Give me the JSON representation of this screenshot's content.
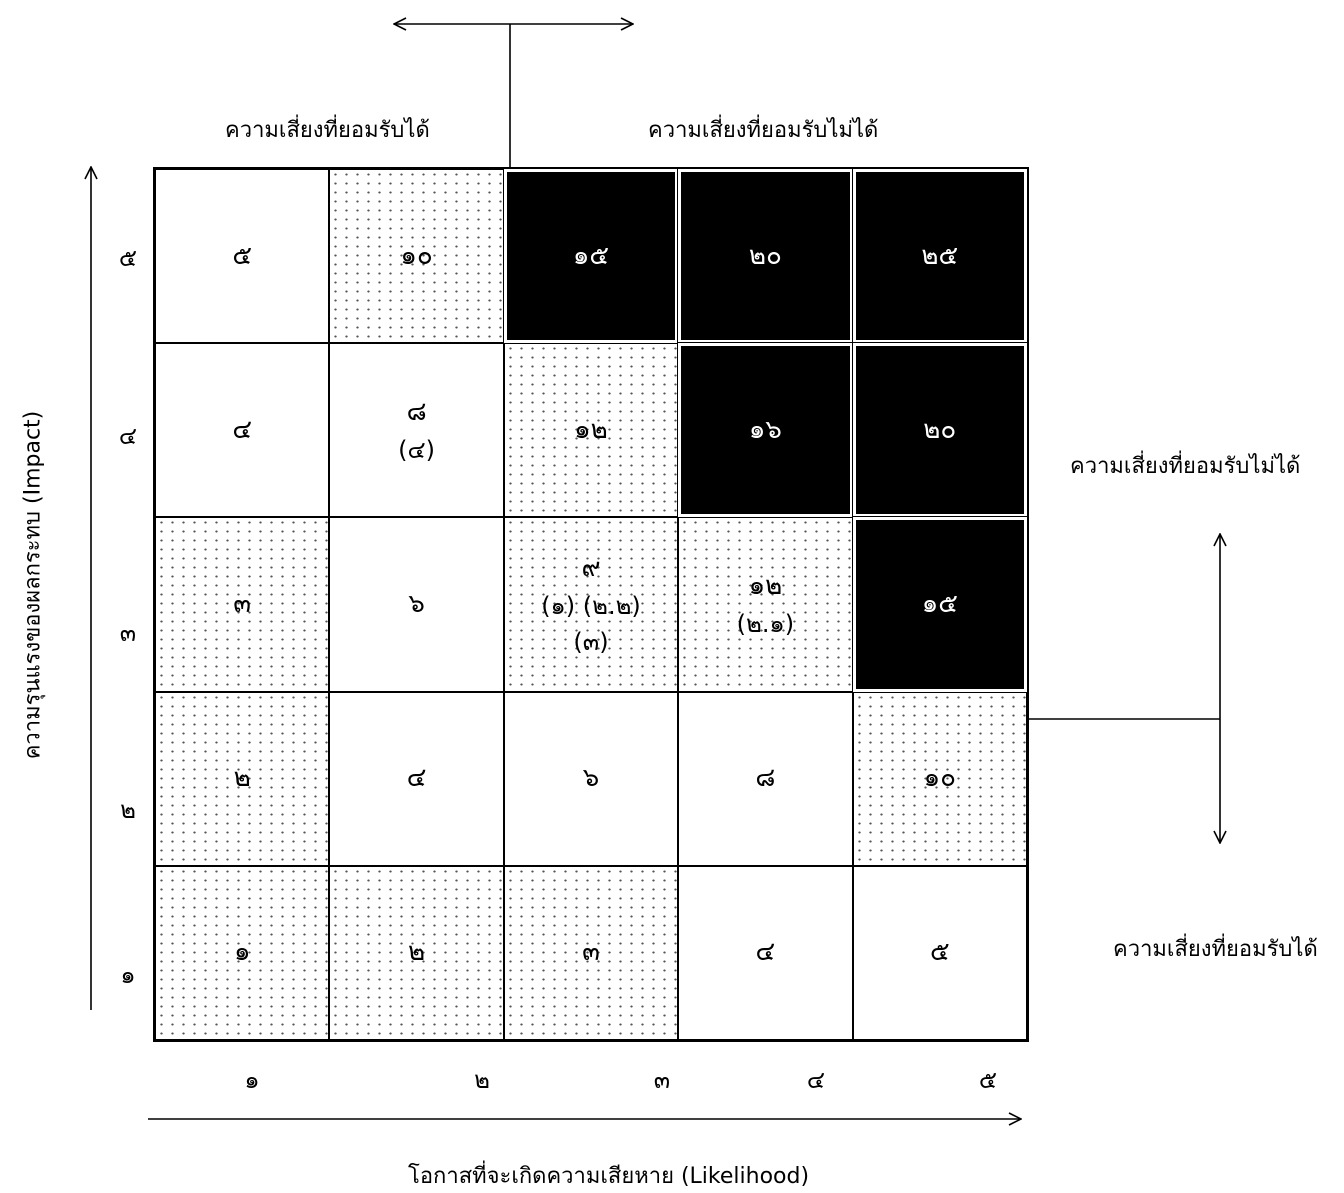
{
  "top_labels": {
    "acceptable": "ความเสี่ยงที่ยอมรับได้",
    "unacceptable": "ความเสี่ยงที่ยอมรับไม่ได้"
  },
  "right_labels": {
    "unacceptable": "ความเสี่ยงที่ยอมรับไม่ได้",
    "acceptable": "ความเสี่ยงที่ยอมรับได้"
  },
  "y_axis_label": "ความรุนแรงของผลกระทบ (Impact)",
  "x_axis_label": "โอกาสที่จะเกิดความเสียหาย (Likelihood)",
  "row_labels": [
    "๕",
    "๔",
    "๓",
    "๒",
    "๑"
  ],
  "col_labels": [
    "๑",
    "๒",
    "๓",
    "๔",
    "๕"
  ],
  "matrix": [
    [
      {
        "v": "๕",
        "s": "w"
      },
      {
        "v": "๑๐",
        "s": "d"
      },
      {
        "v": "๑๕",
        "s": "k"
      },
      {
        "v": "๒๐",
        "s": "k"
      },
      {
        "v": "๒๕",
        "s": "k"
      }
    ],
    [
      {
        "v": "๔",
        "s": "w"
      },
      {
        "v": "๘",
        "sub": "(๔)",
        "s": "w"
      },
      {
        "v": "๑๒",
        "s": "d"
      },
      {
        "v": "๑๖",
        "s": "k"
      },
      {
        "v": "๒๐",
        "s": "k"
      }
    ],
    [
      {
        "v": "๓",
        "s": "d"
      },
      {
        "v": "๖",
        "s": "w"
      },
      {
        "v": "๙",
        "sub": "(๑) (๒.๒)",
        "sub2": "(๓)",
        "s": "d"
      },
      {
        "v": "๑๒",
        "sub": "(๒.๑)",
        "s": "d"
      },
      {
        "v": "๑๕",
        "s": "k"
      }
    ],
    [
      {
        "v": "๒",
        "s": "d"
      },
      {
        "v": "๔",
        "s": "w"
      },
      {
        "v": "๖",
        "s": "w"
      },
      {
        "v": "๘",
        "s": "w"
      },
      {
        "v": "๑๐",
        "s": "d"
      }
    ],
    [
      {
        "v": "๑",
        "s": "d"
      },
      {
        "v": "๒",
        "s": "d"
      },
      {
        "v": "๓",
        "s": "d"
      },
      {
        "v": "๔",
        "s": "w"
      },
      {
        "v": "๕",
        "s": "w"
      }
    ]
  ]
}
